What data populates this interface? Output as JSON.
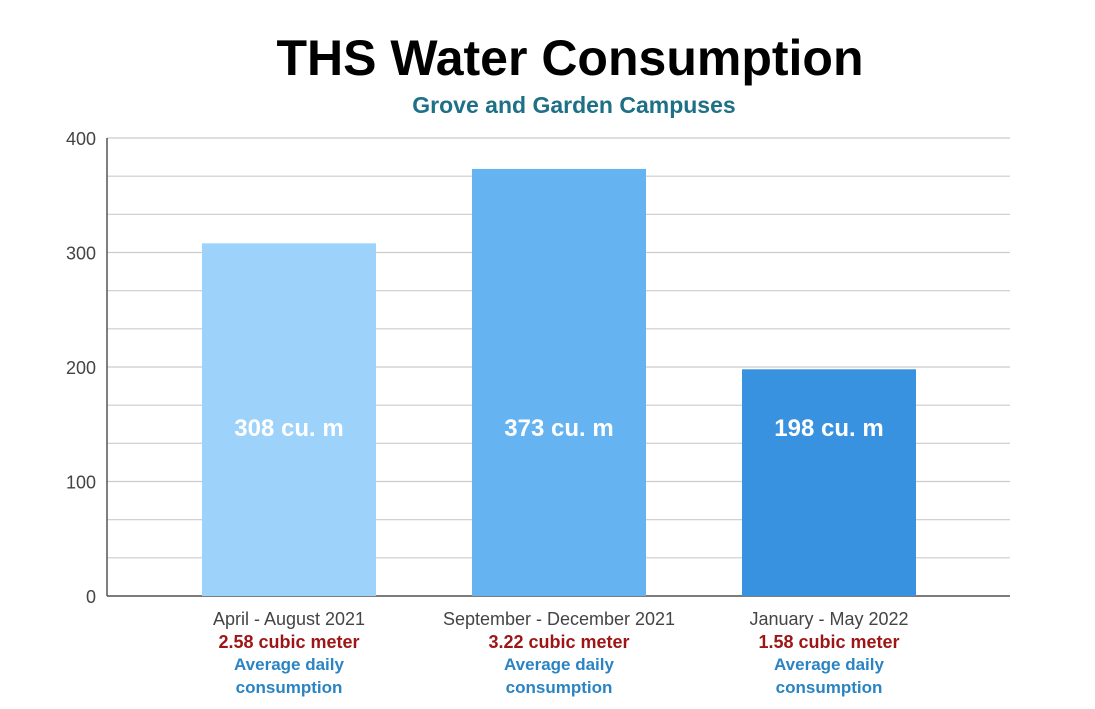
{
  "chart_data": {
    "type": "bar",
    "title": "THS Water Consumption",
    "subtitle": "Grove and Garden Campuses",
    "xlabel": "",
    "ylabel": "",
    "ylim": [
      0,
      400
    ],
    "y_ticks": [
      0,
      100,
      200,
      300,
      400
    ],
    "grid": true,
    "legend": "none",
    "categories": [
      "April - August 2021",
      "September - December 2021",
      "January - May 2022"
    ],
    "values": [
      308,
      373,
      198
    ],
    "bar_labels": [
      "308 cu. m",
      "373 cu. m",
      "198 cu. m"
    ],
    "daily_values": [
      "2.58 cubic meter",
      "3.22 cubic meter",
      "1.58 cubic meter"
    ],
    "daily_caption_line1": "Average daily",
    "daily_caption_line2": "consumption",
    "colors": {
      "bars": [
        "#9dd2fa",
        "#65b3f1",
        "#3892e0"
      ],
      "title": "#000000",
      "subtitle": "#1d7085",
      "daily_value": "#9e1515",
      "daily_caption": "#2a84c4",
      "axis_text": "#444444",
      "grid": "#cccccc",
      "bar_label": "#ffffff"
    }
  }
}
